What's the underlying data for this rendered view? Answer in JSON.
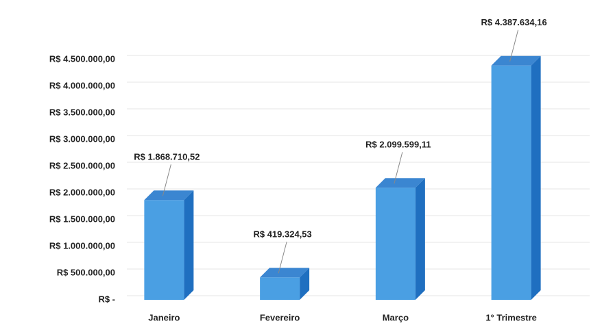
{
  "chart_data": {
    "type": "bar3d",
    "categories": [
      "Janeiro",
      "Fevereiro",
      "Março",
      "1° Trimestre"
    ],
    "values": [
      1868710.52,
      419324.53,
      2099599.11,
      4387634.16
    ],
    "value_labels": [
      "R$ 1.868.710,52",
      "R$ 419.324,53",
      "R$ 2.099.599,11",
      "R$ 4.387.634,16"
    ],
    "color": "#4a9fe3",
    "ylim": [
      0,
      5000000
    ],
    "yticks": [
      {
        "value": 0,
        "label": "R$ -"
      },
      {
        "value": 500000,
        "label": "R$ 500.000,00"
      },
      {
        "value": 1000000,
        "label": "R$ 1.000.000,00"
      },
      {
        "value": 1500000,
        "label": "R$ 1.500.000,00"
      },
      {
        "value": 2000000,
        "label": "R$ 2.000.000,00"
      },
      {
        "value": 2500000,
        "label": "R$ 2.500.000,00"
      },
      {
        "value": 3000000,
        "label": "R$ 3.000.000,00"
      },
      {
        "value": 3500000,
        "label": "R$ 3.500.000,00"
      },
      {
        "value": 4000000,
        "label": "R$ 4.000.000,00"
      },
      {
        "value": 4500000,
        "label": "R$ 4.500.000,00"
      }
    ],
    "grid": true
  }
}
